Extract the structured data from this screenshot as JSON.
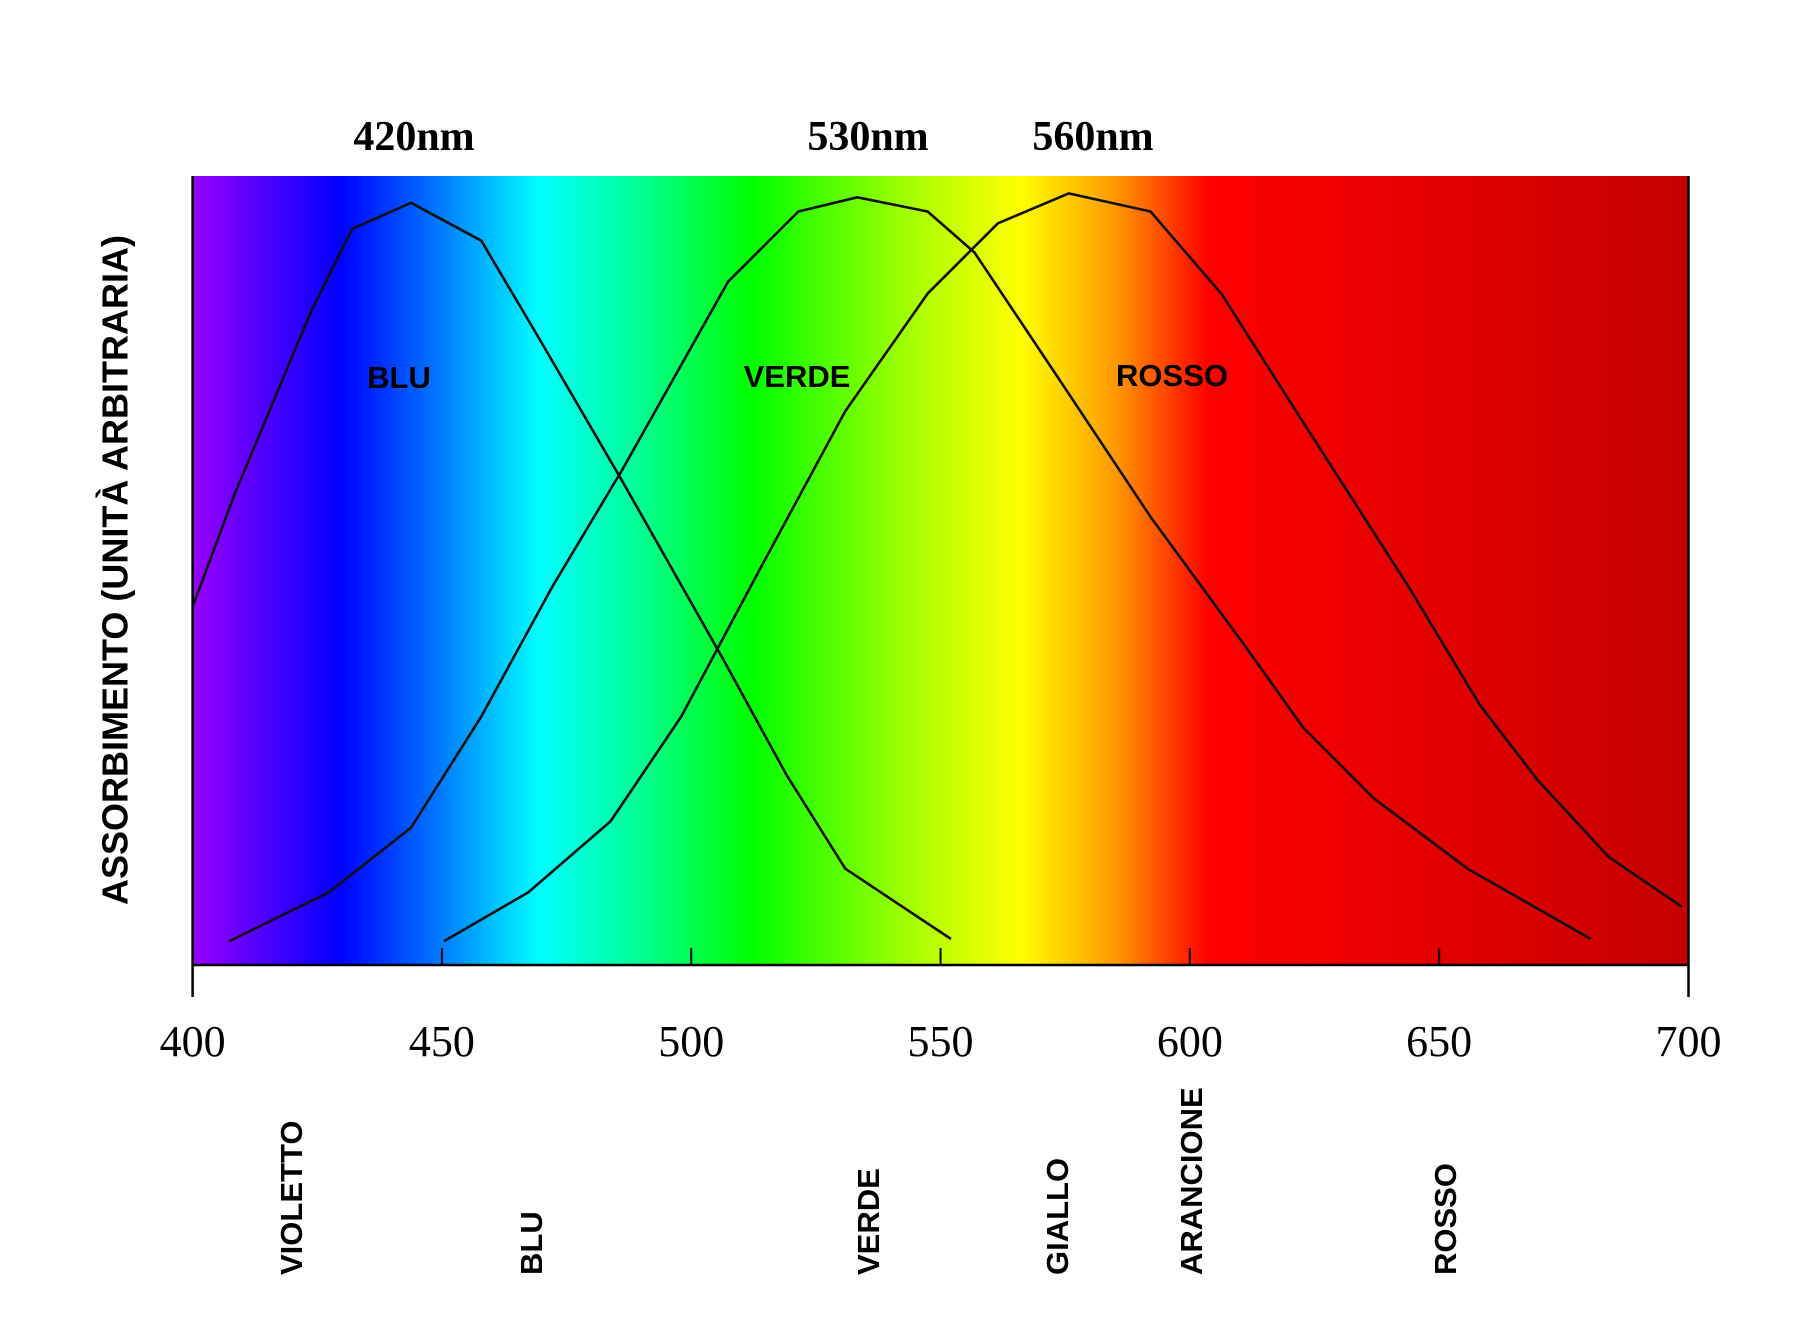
{
  "chart_data": {
    "type": "line",
    "y_label": "ASSORBIMENTO (UNITÀ ARBITRARIA)",
    "annotations": [
      "420nm",
      "530nm",
      "560nm"
    ],
    "spectrum_labels": [
      "VIOLETTO",
      "BLU",
      "VERDE",
      "GIALLO",
      "ARANCIONE",
      "ROSSO"
    ],
    "xlim": [
      400,
      700
    ],
    "xticks": [
      400,
      450,
      500,
      550,
      600,
      650,
      700
    ],
    "ylim": [
      0,
      100
    ],
    "series": [
      {
        "name": "BLU",
        "color": "#111111",
        "x": [
          400,
          408.5,
          423.8,
          432.0,
          443.8,
          457.9,
          469.7,
          486.2,
          506.2,
          519.1,
          530.9,
          552.1
        ],
        "values": [
          45.4,
          59.8,
          82.9,
          93.3,
          96.6,
          91.8,
          79.2,
          61.3,
          39.0,
          24.1,
          12.2,
          3.3
        ]
      },
      {
        "name": "VERDE",
        "color": "#111111",
        "x": [
          407.3,
          427.3,
          443.8,
          457.9,
          472.1,
          486.2,
          507.4,
          521.5,
          533.3,
          547.4,
          556.8,
          573.3,
          592.1,
          611.0,
          622.7,
          636.9,
          655.7,
          680.4
        ],
        "values": [
          3.0,
          9.2,
          17.4,
          31.5,
          47.9,
          62.8,
          86.6,
          95.5,
          97.3,
          95.5,
          90.3,
          74.7,
          56.8,
          40.5,
          30.1,
          21.1,
          12.2,
          3.3
        ]
      },
      {
        "name": "ROSSO",
        "color": "#111111",
        "x": [
          450.4,
          467.3,
          483.8,
          498.0,
          514.4,
          530.9,
          547.4,
          561.5,
          575.7,
          592.1,
          606.3,
          622.7,
          643.9,
          658.1,
          669.8,
          684.0,
          698.6
        ],
        "values": [
          3.0,
          9.2,
          18.2,
          31.5,
          50.9,
          70.2,
          85.1,
          94.0,
          97.8,
          95.5,
          85.1,
          68.8,
          47.9,
          33.0,
          23.4,
          13.7,
          7.4
        ]
      }
    ]
  }
}
